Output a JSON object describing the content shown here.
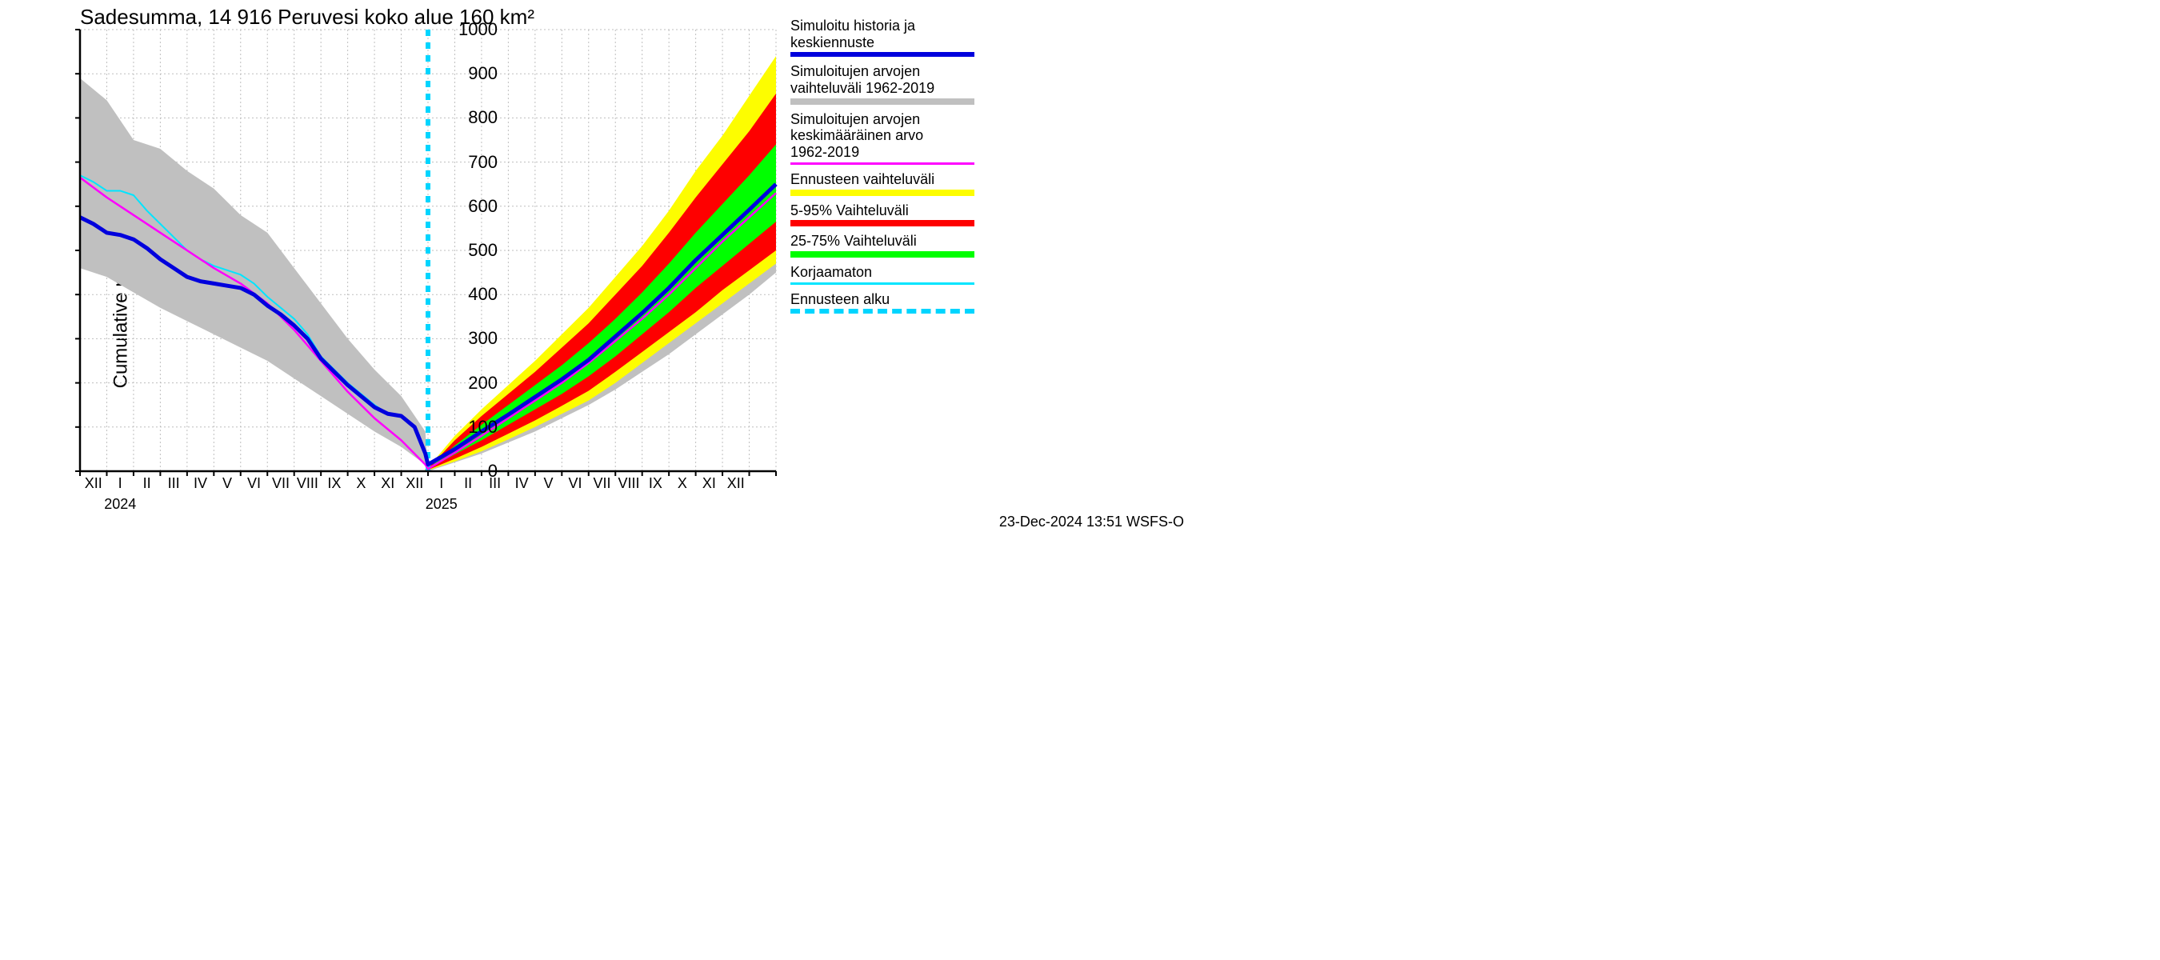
{
  "chart": {
    "type": "line-band",
    "title": "Sadesumma, 14 916 Peruvesi koko alue 160 km²",
    "ylabel": "Cumulative precipitation   mm",
    "timestamp": "23-Dec-2024 13:51 WSFS-O",
    "background_color": "#ffffff",
    "grid_color": "#bfbfbf",
    "axis_color": "#000000",
    "ylim": [
      0,
      1000
    ],
    "yticks": [
      0,
      100,
      200,
      300,
      400,
      500,
      600,
      700,
      800,
      900,
      1000
    ],
    "xlim": [
      0,
      26
    ],
    "months": [
      "XII",
      "I",
      "II",
      "III",
      "IV",
      "V",
      "VI",
      "VII",
      "VIII",
      "IX",
      "X",
      "XI",
      "XII",
      "I",
      "II",
      "III",
      "IV",
      "V",
      "VI",
      "VII",
      "VIII",
      "IX",
      "X",
      "XI",
      "XII"
    ],
    "year_labels": [
      {
        "x": 1.5,
        "text": "2024"
      },
      {
        "x": 13.5,
        "text": "2025"
      }
    ],
    "vline_x": 13.0,
    "vline_color": "#00d5ff",
    "bands": {
      "grey": {
        "color": "#c0c0c0",
        "x": [
          0.0,
          1.0,
          2.0,
          3.0,
          4.0,
          5.0,
          6.0,
          7.0,
          8.0,
          9.0,
          10.0,
          11.0,
          12.0,
          12.9,
          13.0,
          14.0,
          15.0,
          16.0,
          17.0,
          18.0,
          19.0,
          20.0,
          21.0,
          22.0,
          23.0,
          24.0,
          25.0,
          26.0
        ],
        "upper": [
          890,
          840,
          750,
          730,
          680,
          640,
          580,
          540,
          460,
          380,
          300,
          230,
          170,
          90,
          5,
          55,
          100,
          140,
          180,
          235,
          280,
          340,
          400,
          460,
          530,
          600,
          670,
          760
        ],
        "lower": [
          460,
          440,
          405,
          370,
          340,
          310,
          280,
          250,
          210,
          170,
          130,
          90,
          55,
          15,
          0,
          20,
          40,
          65,
          90,
          120,
          150,
          185,
          225,
          265,
          310,
          355,
          400,
          450
        ]
      },
      "yellow": {
        "color": "#fdfd00",
        "x": [
          12.9,
          13.0,
          14.0,
          15.0,
          16.0,
          17.0,
          18.0,
          19.0,
          20.0,
          21.0,
          22.0,
          23.0,
          24.0,
          25.0,
          26.0
        ],
        "upper": [
          5,
          8,
          80,
          140,
          195,
          250,
          310,
          370,
          440,
          510,
          590,
          680,
          760,
          850,
          940
        ],
        "lower": [
          0,
          2,
          22,
          45,
          72,
          100,
          130,
          160,
          200,
          245,
          290,
          335,
          380,
          425,
          470
        ]
      },
      "red": {
        "color": "#fe0000",
        "x": [
          12.9,
          13.0,
          14.0,
          15.0,
          16.0,
          17.0,
          18.0,
          19.0,
          20.0,
          21.0,
          22.0,
          23.0,
          24.0,
          25.0,
          26.0
        ],
        "upper": [
          4,
          6,
          70,
          125,
          175,
          225,
          280,
          335,
          400,
          465,
          540,
          620,
          695,
          770,
          855
        ],
        "lower": [
          1,
          3,
          28,
          55,
          85,
          115,
          148,
          182,
          225,
          270,
          315,
          360,
          410,
          455,
          500
        ]
      },
      "green": {
        "color": "#00ff00",
        "x": [
          12.9,
          13.0,
          14.0,
          15.0,
          16.0,
          17.0,
          18.0,
          19.0,
          20.0,
          21.0,
          22.0,
          23.0,
          24.0,
          25.0,
          26.0
        ],
        "upper": [
          3,
          5,
          58,
          105,
          150,
          195,
          240,
          290,
          345,
          405,
          470,
          540,
          605,
          670,
          740
        ],
        "lower": [
          2,
          4,
          38,
          70,
          105,
          140,
          175,
          215,
          260,
          310,
          360,
          415,
          465,
          515,
          565
        ]
      }
    },
    "lines": {
      "blue": {
        "color": "#0000dd",
        "width": 5,
        "x": [
          0.0,
          0.5,
          1.0,
          1.5,
          2.0,
          2.5,
          3.0,
          3.5,
          4.0,
          4.5,
          5.0,
          5.5,
          6.0,
          6.5,
          7.0,
          7.5,
          8.0,
          8.5,
          9.0,
          9.5,
          10.0,
          10.5,
          11.0,
          11.5,
          12.0,
          12.5,
          12.9,
          13.0,
          14.0,
          15.0,
          16.0,
          17.0,
          18.0,
          19.0,
          20.0,
          21.0,
          22.0,
          23.0,
          24.0,
          25.0,
          26.0
        ],
        "y": [
          575,
          560,
          540,
          535,
          525,
          505,
          480,
          460,
          440,
          430,
          425,
          420,
          415,
          400,
          375,
          355,
          330,
          300,
          255,
          225,
          195,
          170,
          145,
          130,
          125,
          100,
          40,
          15,
          50,
          90,
          128,
          168,
          208,
          252,
          305,
          358,
          415,
          478,
          535,
          592,
          650
        ]
      },
      "magenta": {
        "color": "#fe00fe",
        "width": 2.5,
        "x": [
          0.0,
          1.0,
          2.0,
          3.0,
          4.0,
          5.0,
          6.0,
          7.0,
          8.0,
          9.0,
          10.0,
          11.0,
          12.0,
          12.9,
          13.0,
          14.0,
          15.0,
          16.0,
          17.0,
          18.0,
          19.0,
          20.0,
          21.0,
          22.0,
          23.0,
          24.0,
          25.0,
          26.0
        ],
        "y": [
          665,
          620,
          580,
          540,
          500,
          460,
          425,
          380,
          320,
          250,
          180,
          120,
          70,
          15,
          5,
          42,
          80,
          120,
          160,
          200,
          245,
          295,
          345,
          400,
          460,
          520,
          575,
          630
        ]
      },
      "cyan": {
        "color": "#00e5ff",
        "width": 2,
        "x": [
          0.0,
          0.5,
          1.0,
          1.5,
          2.0,
          2.5,
          3.0,
          3.5,
          4.0,
          4.5,
          5.0,
          5.5,
          6.0,
          6.5,
          7.0,
          7.5,
          8.0,
          8.5,
          9.0,
          9.5,
          10.0,
          10.5,
          11.0,
          11.5,
          12.0,
          12.5,
          12.9
        ],
        "y": [
          670,
          655,
          635,
          635,
          625,
          590,
          560,
          530,
          500,
          480,
          465,
          455,
          445,
          425,
          395,
          370,
          345,
          310,
          260,
          230,
          200,
          175,
          150,
          130,
          125,
          100,
          40
        ]
      }
    }
  },
  "legend": [
    {
      "label_lines": [
        "Simuloitu historia ja",
        "keskiennuste"
      ],
      "swatch_color": "#0000dd",
      "swatch_type": "thick"
    },
    {
      "label_lines": [
        "Simuloitujen arvojen",
        "vaihteluväli 1962-2019"
      ],
      "swatch_color": "#c0c0c0",
      "swatch_type": "band"
    },
    {
      "label_lines": [
        "Simuloitujen arvojen",
        "keskimääräinen arvo",
        "  1962-2019"
      ],
      "swatch_color": "#fe00fe",
      "swatch_type": "line"
    },
    {
      "label_lines": [
        "Ennusteen vaihteluväli"
      ],
      "swatch_color": "#fdfd00",
      "swatch_type": "band"
    },
    {
      "label_lines": [
        "5-95% Vaihteluväli"
      ],
      "swatch_color": "#fe0000",
      "swatch_type": "band"
    },
    {
      "label_lines": [
        "25-75% Vaihteluväli"
      ],
      "swatch_color": "#00ff00",
      "swatch_type": "band"
    },
    {
      "label_lines": [
        "Korjaamaton"
      ],
      "swatch_color": "#00e5ff",
      "swatch_type": "line"
    },
    {
      "label_lines": [
        "Ennusteen alku"
      ],
      "swatch_color": "#00d5ff",
      "swatch_type": "dashed"
    }
  ]
}
